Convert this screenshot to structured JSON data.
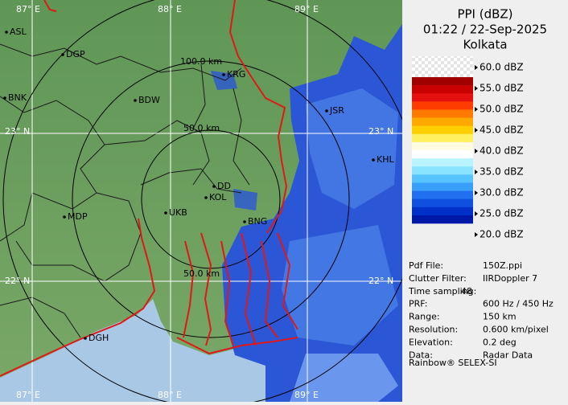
{
  "map": {
    "lon_labels_top": [
      "87° E",
      "88° E",
      "89° E"
    ],
    "lon_labels_bottom": [
      "87° E",
      "88° E",
      "89° E"
    ],
    "lat_labels": [
      "23° N",
      "22° N"
    ],
    "range_labels": [
      "100.0 km",
      "50.0 km",
      "50.0 km"
    ],
    "places": [
      "ASL",
      "DGP",
      "BNK",
      "BDW",
      "KRG",
      "MDP",
      "UKB",
      "DD",
      "KOL",
      "BNG",
      "DGH",
      "KHL",
      "JSR"
    ]
  },
  "panel": {
    "title": "PPI (dBZ)",
    "time": "01:22 / 22-Sep-2025",
    "site": "Kolkata",
    "legend": {
      "labels": [
        "60.0 dBZ",
        "55.0 dBZ",
        "50.0 dBZ",
        "45.0 dBZ",
        "40.0 dBZ",
        "35.0 dBZ",
        "30.0 dBZ",
        "25.0 dBZ",
        "20.0 dBZ"
      ],
      "colors": [
        "#a00000",
        "#c80000",
        "#e41010",
        "#ff3c00",
        "#ff7a00",
        "#ffa800",
        "#ffd000",
        "#fff060",
        "#fffbe0",
        "#ffffff",
        "#b8f4ff",
        "#88e4ff",
        "#58c4ff",
        "#38a0f8",
        "#2070f0",
        "#1050e0",
        "#0030c8",
        "#0018a8"
      ]
    },
    "info": [
      [
        "Pdf File:",
        "150Z.ppi"
      ],
      [
        "Clutter Filter:",
        "IIRDoppler 7"
      ],
      [
        "Time sampling:",
        "48"
      ],
      [
        "PRF:",
        "600 Hz / 450 Hz"
      ],
      [
        "Range:",
        "150 km"
      ],
      [
        "Resolution:",
        "0.600 km/pixel"
      ],
      [
        "Elevation:",
        "0.2 deg"
      ],
      [
        "Data:",
        "Radar Data"
      ]
    ],
    "footer": "Rainbow® SELEX-SI"
  }
}
